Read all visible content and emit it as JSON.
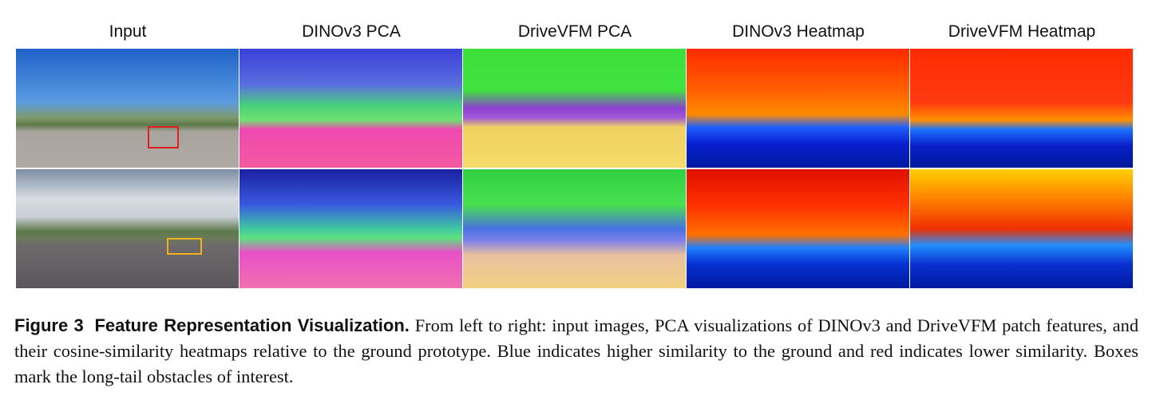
{
  "columns": [
    "Input",
    "DINOv3 PCA",
    "DriveVFM PCA",
    "DINOv3 Heatmap",
    "DriveVFM Heatmap"
  ],
  "caption": {
    "label": "Figure 3",
    "title": "Feature Representation Visualization.",
    "text": "From left to right: input images, PCA visualizations of DINOv3 and DriveVFM patch features, and their cosine-similarity heatmaps relative to the ground prototype. Blue indicates higher similarity to the ground and red indicates lower similarity. Boxes mark the long-tail obstacles of interest."
  }
}
